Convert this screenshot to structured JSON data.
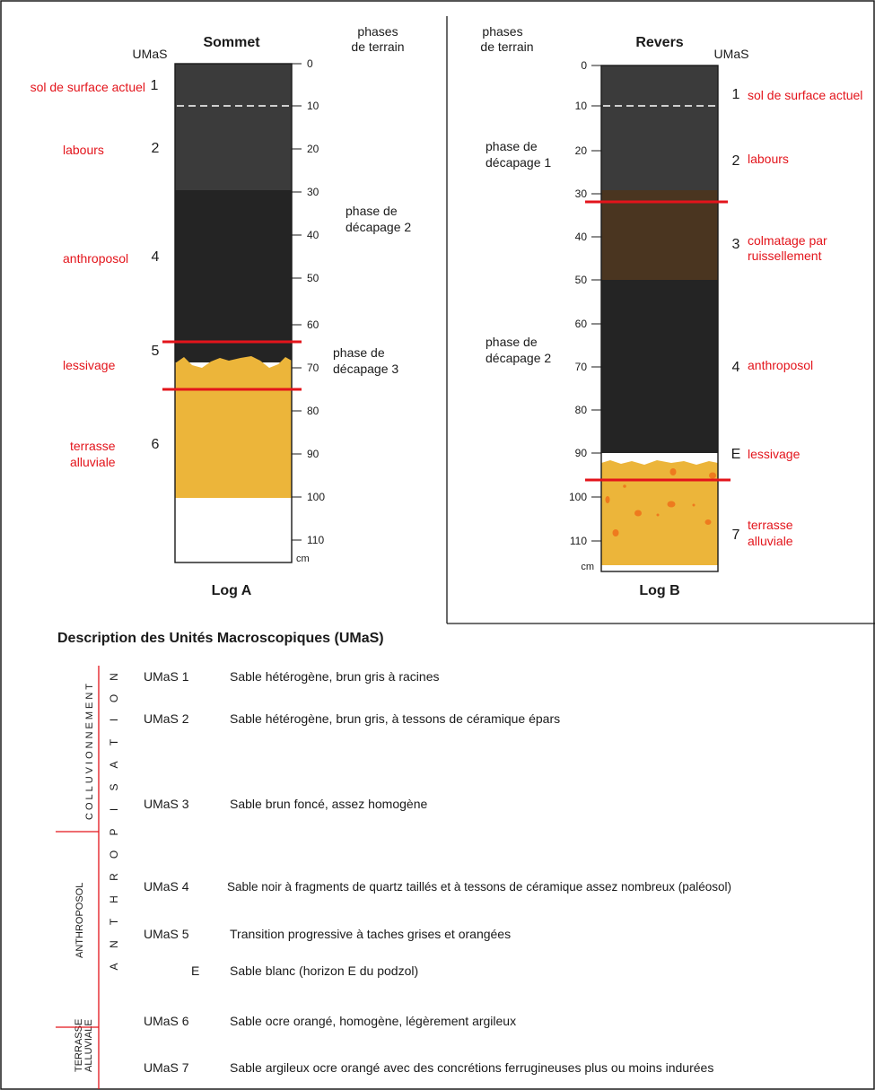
{
  "colors": {
    "unit1_2": "#3b3b3b",
    "unit4": "#242424",
    "unit3": "#4a3520",
    "sand": "#ecb53a",
    "white": "#ffffff",
    "red": "#e3141b",
    "concretion": "#ee7a1e"
  },
  "log_a": {
    "title": "Sommet",
    "caption": "Log A",
    "umas_header": "UMaS",
    "phases_header_1": "phases",
    "phases_header_2": "de terrain",
    "unit_label": "cm",
    "ticks": [
      "0",
      "10",
      "20",
      "30",
      "40",
      "50",
      "60",
      "70",
      "80",
      "90",
      "100",
      "110"
    ],
    "units": [
      {
        "num": "1",
        "desc": "sol de surface actuel"
      },
      {
        "num": "2",
        "desc": "labours"
      },
      {
        "num": "4",
        "desc": "anthroposol"
      },
      {
        "num": "5",
        "desc": "lessivage"
      },
      {
        "num": "6",
        "desc_1": "terrasse",
        "desc_2": "alluviale"
      }
    ],
    "phases": [
      {
        "line_1": "phase de",
        "line_2": "décapage 2"
      },
      {
        "line_1": "phase de",
        "line_2": "décapage 3"
      }
    ]
  },
  "log_b": {
    "title": "Revers",
    "caption": "Log B",
    "umas_header": "UMaS",
    "phases_header_1": "phases",
    "phases_header_2": "de terrain",
    "unit_label": "cm",
    "ticks": [
      "0",
      "10",
      "20",
      "30",
      "40",
      "50",
      "60",
      "70",
      "80",
      "90",
      "100",
      "110"
    ],
    "units": [
      {
        "num": "1",
        "desc": "sol de surface actuel"
      },
      {
        "num": "2",
        "desc": "labours"
      },
      {
        "num": "3",
        "desc_1": "colmatage par",
        "desc_2": "ruissellement"
      },
      {
        "num": "4",
        "desc": "anthroposol"
      },
      {
        "num": "E",
        "desc": "lessivage"
      },
      {
        "num": "7",
        "desc_1": "terrasse",
        "desc_2": "alluviale"
      }
    ],
    "phases": [
      {
        "line_1": "phase de",
        "line_2": "décapage 1"
      },
      {
        "line_1": "phase de",
        "line_2": "décapage 2"
      }
    ]
  },
  "description": {
    "title": "Description des Unités Macroscopiques (UMaS)",
    "group_colluvionnement": "COLLUVIONNEMENT",
    "group_anthroposol": "ANTHROPOSOL",
    "group_terrasse_1": "TERRASSE",
    "group_terrasse_2": "ALLUVIALE",
    "anthropisation_letters": [
      "N",
      "O",
      "I",
      "T",
      "A",
      "S",
      "I",
      "P",
      "O",
      "R",
      "H",
      "T",
      "N",
      "A"
    ],
    "rows": [
      {
        "code": "UMaS  1",
        "text": "Sable hétérogène, brun gris à racines"
      },
      {
        "code": "UMaS  2",
        "text": "Sable hétérogène, brun gris, à tessons de céramique épars"
      },
      {
        "code": "UMaS  3",
        "text": "Sable brun foncé, assez homogène"
      },
      {
        "code": "UMaS 4",
        "text": "Sable noir à fragments de quartz taillés et à tessons de céramique assez nombreux (paléosol)"
      },
      {
        "code": "UMaS  5",
        "text": "Transition progressive à taches grises et orangées"
      },
      {
        "code": "E",
        "text": "Sable blanc (horizon E du podzol)"
      },
      {
        "code": "UMaS  6",
        "text": "Sable ocre orangé, homogène, légèrement argileux"
      },
      {
        "code": "UMaS  7",
        "text": "Sable argileux ocre orangé avec des concrétions ferrugineuses plus ou moins indurées"
      }
    ]
  }
}
